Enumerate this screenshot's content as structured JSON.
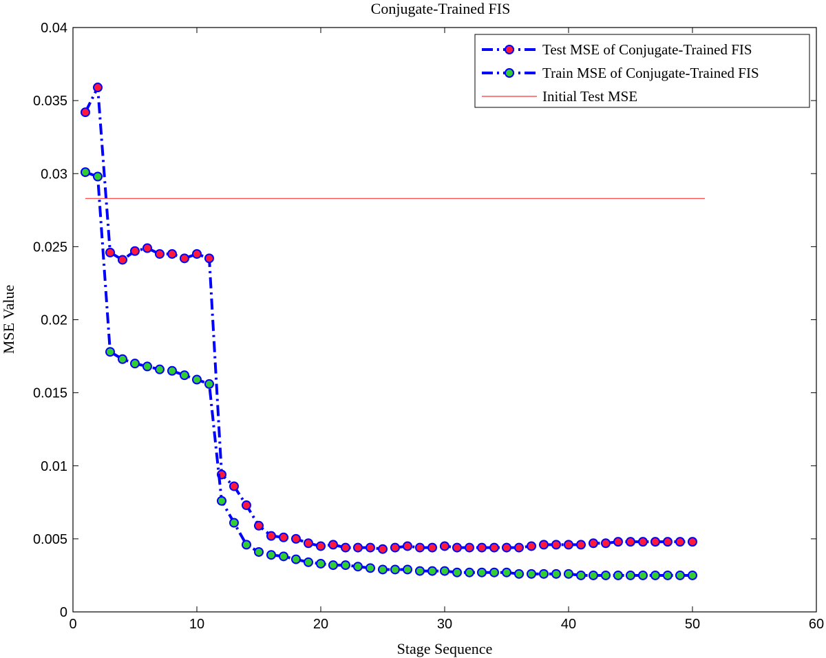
{
  "chart_data": {
    "type": "line",
    "title": "Conjugate-Trained FIS",
    "xlabel": "Stage Sequence",
    "ylabel": "MSE Value",
    "xlim": [
      0,
      60
    ],
    "ylim": [
      0,
      0.04
    ],
    "xticks": [
      0,
      10,
      20,
      30,
      40,
      50,
      60
    ],
    "yticks": [
      0,
      0.005,
      0.01,
      0.015,
      0.02,
      0.025,
      0.03,
      0.035,
      0.04
    ],
    "xtick_labels": [
      "0",
      "10",
      "20",
      "30",
      "40",
      "50",
      "60"
    ],
    "ytick_labels": [
      "0",
      "0.005",
      "0.01",
      "0.015",
      "0.02",
      "0.025",
      "0.03",
      "0.035",
      "0.04"
    ],
    "grid": false,
    "legend_position": "top-right",
    "x": [
      1,
      2,
      3,
      4,
      5,
      6,
      7,
      8,
      9,
      10,
      11,
      12,
      13,
      14,
      15,
      16,
      17,
      18,
      19,
      20,
      21,
      22,
      23,
      24,
      25,
      26,
      27,
      28,
      29,
      30,
      31,
      32,
      33,
      34,
      35,
      36,
      37,
      38,
      39,
      40,
      41,
      42,
      43,
      44,
      45,
      46,
      47,
      48,
      49,
      50
    ],
    "series": [
      {
        "name": "Test MSE of Conjugate-Trained FIS",
        "line_color": "#0000ff",
        "line_style": "dash-dot",
        "marker_face": "#ff1a3a",
        "values": [
          0.0342,
          0.0359,
          0.0246,
          0.0241,
          0.0247,
          0.0249,
          0.0245,
          0.0245,
          0.0242,
          0.0245,
          0.0242,
          0.0094,
          0.0086,
          0.0073,
          0.0059,
          0.0052,
          0.0051,
          0.005,
          0.0047,
          0.0045,
          0.0046,
          0.0044,
          0.0044,
          0.0044,
          0.0043,
          0.0044,
          0.0045,
          0.0044,
          0.0044,
          0.0045,
          0.0044,
          0.0044,
          0.0044,
          0.0044,
          0.0044,
          0.0044,
          0.0045,
          0.0046,
          0.0046,
          0.0046,
          0.0046,
          0.0047,
          0.0047,
          0.0048,
          0.0048,
          0.0048,
          0.0048,
          0.0048,
          0.0048,
          0.0048
        ]
      },
      {
        "name": "Train MSE of Conjugate-Trained FIS",
        "line_color": "#0000ff",
        "line_style": "dash-dot",
        "marker_face": "#33cc33",
        "values": [
          0.0301,
          0.0298,
          0.0178,
          0.0173,
          0.017,
          0.0168,
          0.0166,
          0.0165,
          0.0162,
          0.0159,
          0.0156,
          0.0076,
          0.0061,
          0.0046,
          0.0041,
          0.0039,
          0.0038,
          0.0036,
          0.0034,
          0.0033,
          0.0032,
          0.0032,
          0.0031,
          0.003,
          0.0029,
          0.0029,
          0.0029,
          0.0028,
          0.0028,
          0.0028,
          0.0027,
          0.0027,
          0.0027,
          0.0027,
          0.0027,
          0.0026,
          0.0026,
          0.0026,
          0.0026,
          0.0026,
          0.0025,
          0.0025,
          0.0025,
          0.0025,
          0.0025,
          0.0025,
          0.0025,
          0.0025,
          0.0025,
          0.0025
        ]
      },
      {
        "name": "Initial Test MSE",
        "line_color": "#ff3333",
        "line_style": "solid",
        "x_range": [
          1,
          51
        ],
        "value": 0.0283
      }
    ]
  }
}
